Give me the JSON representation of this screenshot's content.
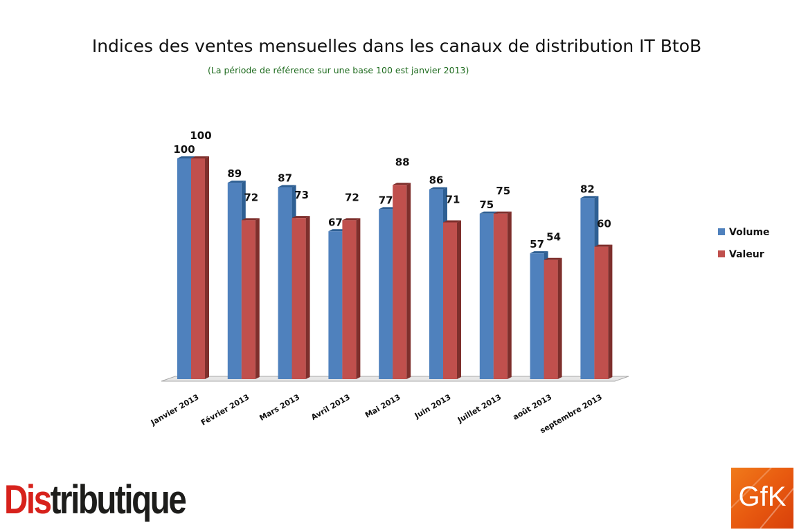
{
  "chart_data": {
    "type": "bar",
    "title": "Indices des ventes mensuelles dans les canaux de distribution IT BtoB",
    "subtitle": "(La période de référence sur une base 100 est janvier 2013)",
    "categories": [
      "Janvier 2013",
      "Février 2013",
      "Mars 2013",
      "Avril 2013",
      "Mai 2013",
      "Juin 2013",
      "Juillet 2013",
      "août 2013",
      "septembre 2013"
    ],
    "series": [
      {
        "name": "Volume",
        "color": "#4f81bd",
        "side": "#2e5f93",
        "values": [
          100,
          89,
          87,
          67,
          77,
          86,
          75,
          57,
          82
        ]
      },
      {
        "name": "Valeur",
        "color": "#c0504d",
        "side": "#7e2f2c",
        "values": [
          100,
          72,
          73,
          72,
          88,
          71,
          75,
          54,
          60
        ]
      }
    ],
    "ylim": [
      0,
      100
    ],
    "grid": false,
    "legend": "right",
    "three_d": true
  },
  "logos": {
    "distributique": {
      "text": "Distributique",
      "colors": {
        "dis": "#d7221c",
        "rest": "#1d1d1b"
      }
    },
    "gfk": {
      "text": "GfK",
      "color": "#f07a1a"
    }
  }
}
